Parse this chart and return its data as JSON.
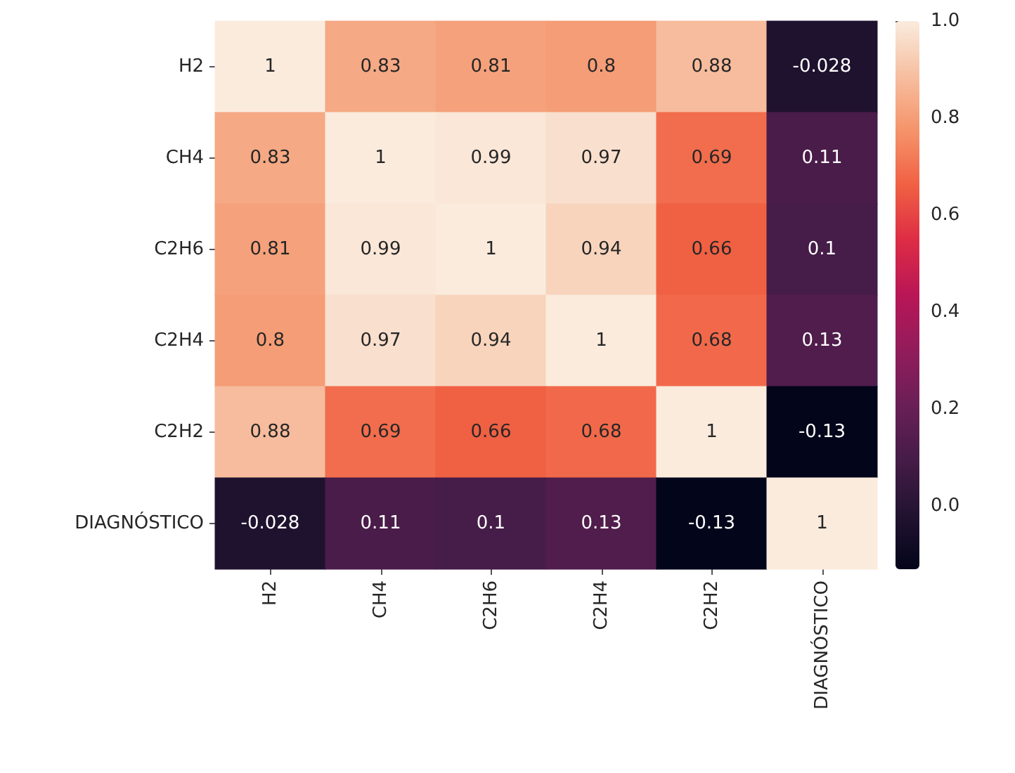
{
  "chart_data": {
    "type": "heatmap",
    "categories": [
      "H2",
      "CH4",
      "C2H6",
      "C2H4",
      "C2H2",
      "DIAGNÓSTICO"
    ],
    "y_categories": [
      "H2",
      "CH4",
      "C2H6",
      "C2H4",
      "C2H2",
      "DIAGNÓSTICO"
    ],
    "cells": [
      [
        1,
        0.83,
        0.81,
        0.8,
        0.88,
        -0.028
      ],
      [
        0.83,
        1,
        0.99,
        0.97,
        0.69,
        0.11
      ],
      [
        0.81,
        0.99,
        1,
        0.94,
        0.66,
        0.1
      ],
      [
        0.8,
        0.97,
        0.94,
        1,
        0.68,
        0.13
      ],
      [
        0.88,
        0.69,
        0.66,
        0.68,
        1,
        -0.13
      ],
      [
        -0.028,
        0.11,
        0.1,
        0.13,
        -0.13,
        1
      ]
    ],
    "clim": [
      -0.13,
      1
    ],
    "cticks": [
      {
        "value": 0,
        "label": "0.0"
      },
      {
        "value": 0.2,
        "label": "0.2"
      },
      {
        "value": 0.4,
        "label": "0.4"
      },
      {
        "value": 0.6,
        "label": "0.6"
      },
      {
        "value": 0.8,
        "label": "0.8"
      },
      {
        "value": 1,
        "label": "1.0"
      }
    ],
    "data_labels": true
  }
}
